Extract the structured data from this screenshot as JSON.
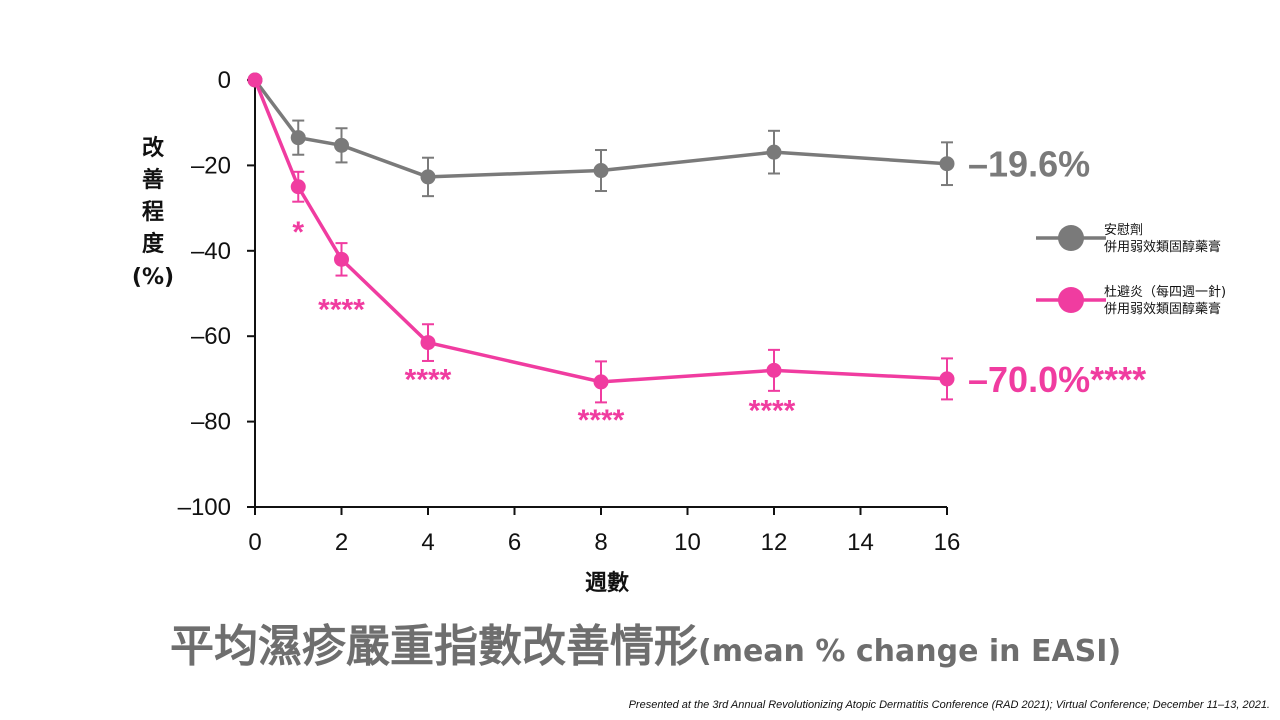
{
  "chart_data": {
    "type": "line",
    "xlabel": "週數",
    "ylabel_chars": [
      "改",
      "善",
      "程",
      "度",
      "(%)"
    ],
    "x_ticks": [
      "0",
      "2",
      "4",
      "6",
      "8",
      "10",
      "12",
      "14",
      "16"
    ],
    "y_ticks": [
      "0",
      "–20",
      "–40",
      "–60",
      "–80",
      "–100"
    ],
    "y_tick_values": [
      0,
      -20,
      -40,
      -60,
      -80,
      -100
    ],
    "xlim": [
      0,
      16
    ],
    "ylim": [
      -100,
      0
    ],
    "grid": false,
    "legend_placement": "right",
    "series": [
      {
        "key": "placebo",
        "legend_lines": [
          "安慰劑",
          "併用弱效類固醇藥膏"
        ],
        "color": "#7a7a7a",
        "x": [
          0,
          1,
          2,
          4,
          8,
          12,
          16
        ],
        "y": [
          0,
          -13.5,
          -15.3,
          -22.7,
          -21.2,
          -16.9,
          -19.6
        ],
        "err": [
          0,
          4,
          4,
          4.5,
          4.8,
          5,
          5
        ],
        "end_label": "–19.6%"
      },
      {
        "key": "dupilumab",
        "legend_lines": [
          "杜避炎（每四週一針)",
          "併用弱效類固醇藥膏"
        ],
        "color": "#f03ca0",
        "x": [
          0,
          1,
          2,
          4,
          8,
          12,
          16
        ],
        "y": [
          0,
          -25,
          -42,
          -61.5,
          -70.7,
          -68,
          -70
        ],
        "err": [
          0,
          3.5,
          3.8,
          4.3,
          4.8,
          4.8,
          4.8
        ],
        "end_label": "–70.0%****"
      }
    ],
    "significance": [
      {
        "x": 1,
        "text": "*"
      },
      {
        "x": 2,
        "text": "****"
      },
      {
        "x": 4,
        "text": "****"
      },
      {
        "x": 8,
        "text": "****"
      },
      {
        "x": 12,
        "text": "****"
      }
    ]
  },
  "title": {
    "zh": "平均濕疹嚴重指數改善情形",
    "en": "(mean  % change in EASI)"
  },
  "footnote": "Presented at the 3rd Annual Revolutionizing Atopic Dermatitis Conference (RAD 2021); Virtual Conference; December 11–13, 2021."
}
